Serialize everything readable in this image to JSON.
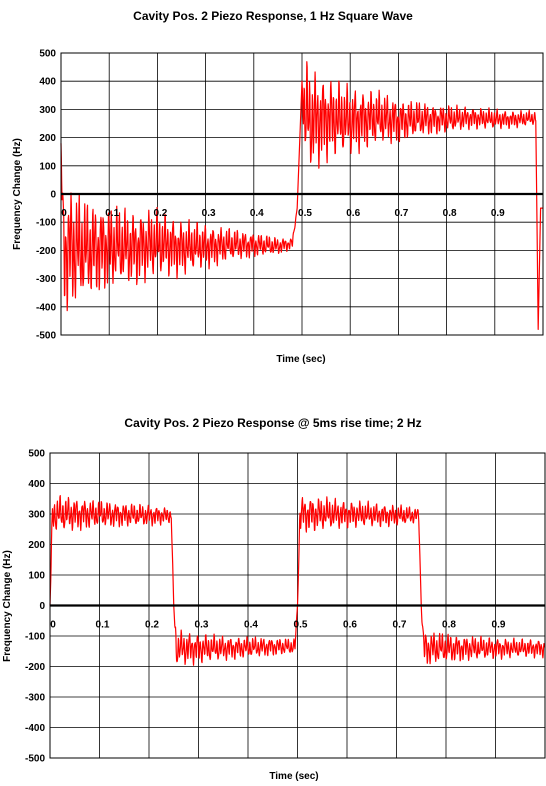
{
  "chart_data": [
    {
      "type": "line",
      "title": "Cavity Pos. 2 Piezo Response, 1 Hz Square Wave",
      "xlabel": "Time (sec)",
      "ylabel": "Frequency Change (Hz)",
      "xlim": [
        0,
        1.0
      ],
      "ylim": [
        -500,
        500
      ],
      "x_ticks": [
        "0",
        "0.1",
        "0.2",
        "0.3",
        "0.4",
        "0.5",
        "0.6",
        "0.7",
        "0.8",
        "0.9"
      ],
      "y_ticks": [
        "500",
        "400",
        "300",
        "200",
        "100",
        "0",
        "-100",
        "-200",
        "-300",
        "-400",
        "-500"
      ],
      "grid": true,
      "series": [
        {
          "color": "#ff0000",
          "x": [
            0,
            0.005,
            0.02,
            0.05,
            0.1,
            0.15,
            0.2,
            0.25,
            0.3,
            0.35,
            0.4,
            0.45,
            0.48,
            0.49,
            0.5,
            0.505,
            0.52,
            0.55,
            0.6,
            0.65,
            0.7,
            0.75,
            0.8,
            0.85,
            0.9,
            0.95,
            0.985,
            0.99,
            0.995
          ],
          "y": [
            180,
            -200,
            -190,
            -200,
            -185,
            -190,
            -175,
            -190,
            -185,
            -180,
            -180,
            -185,
            -175,
            -50,
            400,
            280,
            260,
            270,
            260,
            270,
            260,
            265,
            265,
            270,
            265,
            265,
            270,
            -480,
            -50
          ],
          "amplitude": [
            0,
            220,
            220,
            180,
            150,
            135,
            120,
            100,
            80,
            60,
            45,
            30,
            20,
            0,
            0,
            200,
            180,
            150,
            120,
            100,
            80,
            60,
            50,
            40,
            35,
            30,
            25,
            0,
            0
          ]
        }
      ]
    },
    {
      "type": "line",
      "title": "Cavity Pos. 2 Piezo Response @ 5ms rise time; 2 Hz",
      "xlabel": "Time (sec)",
      "ylabel": "Frequency Change (Hz)",
      "xlim": [
        0,
        1.0
      ],
      "ylim": [
        -500,
        500
      ],
      "x_ticks": [
        "0",
        "0.1",
        "0.2",
        "0.3",
        "0.4",
        "0.5",
        "0.6",
        "0.7",
        "0.8",
        "0.9"
      ],
      "y_ticks": [
        "500",
        "400",
        "300",
        "200",
        "100",
        "0",
        "-100",
        "-200",
        "-300",
        "-400",
        "-500"
      ],
      "grid": true,
      "series": [
        {
          "color": "#ff0000",
          "x": [
            0,
            0.005,
            0.02,
            0.1,
            0.2,
            0.245,
            0.25,
            0.255,
            0.27,
            0.35,
            0.45,
            0.495,
            0.5,
            0.505,
            0.52,
            0.6,
            0.7,
            0.745,
            0.75,
            0.755,
            0.77,
            0.85,
            0.95,
            1.0
          ],
          "y": [
            0,
            300,
            300,
            300,
            295,
            295,
            0,
            -140,
            -140,
            -140,
            -135,
            -135,
            0,
            300,
            300,
            300,
            295,
            295,
            0,
            -140,
            -140,
            -140,
            -140,
            -140
          ],
          "amplitude": [
            0,
            60,
            60,
            45,
            35,
            25,
            0,
            60,
            55,
            40,
            30,
            25,
            0,
            60,
            60,
            45,
            35,
            25,
            0,
            60,
            55,
            40,
            30,
            30
          ]
        }
      ]
    }
  ]
}
